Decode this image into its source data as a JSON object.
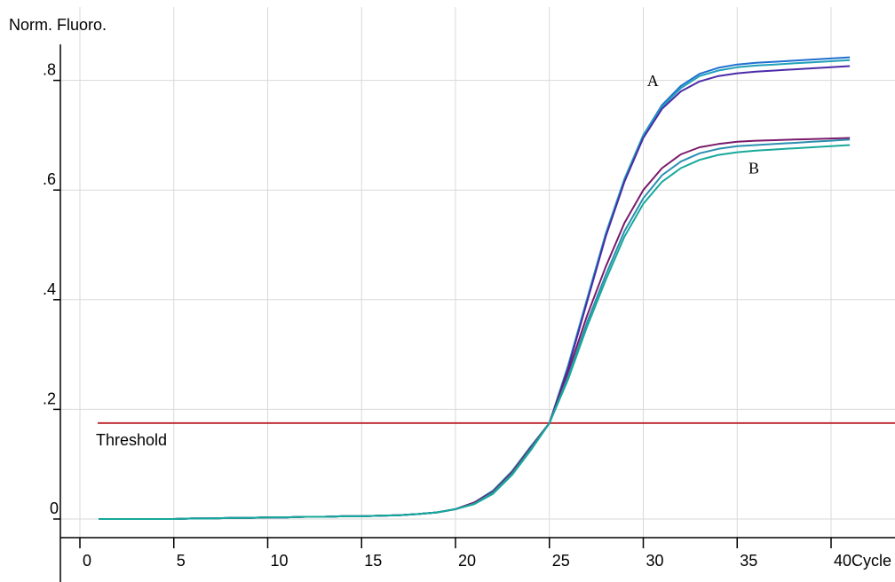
{
  "chart_data": {
    "type": "line",
    "ylabel": "Norm. Fluoro.",
    "xlabel": "Cycle",
    "xlim": [
      0,
      41
    ],
    "ylim": [
      -0.03,
      0.87
    ],
    "x_ticks": [
      0,
      5,
      10,
      15,
      20,
      25,
      30,
      35,
      40
    ],
    "x_tick_labels": [
      "0",
      "5",
      "10",
      "15",
      "20",
      "25",
      "30",
      "35",
      "40"
    ],
    "y_ticks": [
      0,
      0.2,
      0.4,
      0.6,
      0.8
    ],
    "y_tick_labels": [
      "0",
      ".2",
      ".4",
      ".6",
      ".8"
    ],
    "grid": true,
    "threshold": {
      "label": "Threshold",
      "value": 0.175,
      "color": "#c0303a"
    },
    "annotations": [
      {
        "text": "A",
        "x": 30.2,
        "y": 0.79
      },
      {
        "text": "B",
        "x": 35.6,
        "y": 0.63
      }
    ],
    "x": [
      1,
      2,
      3,
      4,
      5,
      6,
      7,
      8,
      9,
      10,
      11,
      12,
      13,
      14,
      15,
      16,
      17,
      18,
      19,
      20,
      21,
      22,
      23,
      24,
      25,
      26,
      27,
      28,
      29,
      30,
      31,
      32,
      33,
      34,
      35,
      36,
      37,
      38,
      39,
      40,
      41
    ],
    "series": [
      {
        "color": "#1f6fd1",
        "values": [
          0,
          0,
          0,
          0,
          0,
          0.001,
          0.001,
          0.002,
          0.002,
          0.003,
          0.003,
          0.004,
          0.004,
          0.005,
          0.005,
          0.006,
          0.007,
          0.009,
          0.012,
          0.018,
          0.03,
          0.05,
          0.085,
          0.13,
          0.175,
          0.28,
          0.4,
          0.52,
          0.62,
          0.7,
          0.755,
          0.79,
          0.812,
          0.823,
          0.829,
          0.832,
          0.834,
          0.836,
          0.838,
          0.84,
          0.842
        ]
      },
      {
        "color": "#20a0b8",
        "values": [
          0,
          0,
          0,
          0,
          0,
          0.001,
          0.001,
          0.002,
          0.002,
          0.003,
          0.003,
          0.004,
          0.004,
          0.005,
          0.005,
          0.006,
          0.007,
          0.009,
          0.012,
          0.018,
          0.03,
          0.052,
          0.087,
          0.132,
          0.175,
          0.28,
          0.4,
          0.52,
          0.62,
          0.7,
          0.752,
          0.786,
          0.808,
          0.818,
          0.824,
          0.827,
          0.829,
          0.831,
          0.833,
          0.835,
          0.837
        ]
      },
      {
        "color": "#4b2aa8",
        "values": [
          0,
          0,
          0,
          0,
          0,
          0.001,
          0.001,
          0.002,
          0.002,
          0.003,
          0.003,
          0.004,
          0.004,
          0.005,
          0.005,
          0.006,
          0.007,
          0.009,
          0.012,
          0.018,
          0.03,
          0.05,
          0.083,
          0.128,
          0.175,
          0.275,
          0.395,
          0.515,
          0.615,
          0.695,
          0.748,
          0.78,
          0.798,
          0.808,
          0.813,
          0.816,
          0.818,
          0.82,
          0.822,
          0.824,
          0.826
        ]
      },
      {
        "color": "#7a1a6a",
        "values": [
          0,
          0,
          0,
          0,
          0,
          0.001,
          0.001,
          0.002,
          0.002,
          0.003,
          0.003,
          0.004,
          0.004,
          0.005,
          0.005,
          0.006,
          0.007,
          0.009,
          0.012,
          0.018,
          0.03,
          0.05,
          0.085,
          0.13,
          0.175,
          0.268,
          0.37,
          0.46,
          0.54,
          0.6,
          0.64,
          0.665,
          0.678,
          0.684,
          0.688,
          0.69,
          0.691,
          0.692,
          0.693,
          0.694,
          0.695
        ]
      },
      {
        "color": "#2a8fb0",
        "values": [
          0,
          0,
          0,
          0,
          0,
          0.001,
          0.001,
          0.002,
          0.002,
          0.003,
          0.003,
          0.004,
          0.004,
          0.005,
          0.005,
          0.006,
          0.007,
          0.009,
          0.012,
          0.018,
          0.028,
          0.048,
          0.082,
          0.127,
          0.175,
          0.26,
          0.358,
          0.445,
          0.525,
          0.585,
          0.627,
          0.652,
          0.667,
          0.675,
          0.68,
          0.682,
          0.684,
          0.686,
          0.688,
          0.69,
          0.692
        ]
      },
      {
        "color": "#17a89a",
        "values": [
          0,
          0,
          0,
          0,
          0,
          0.001,
          0.001,
          0.002,
          0.002,
          0.003,
          0.003,
          0.004,
          0.004,
          0.005,
          0.005,
          0.006,
          0.007,
          0.009,
          0.012,
          0.018,
          0.027,
          0.046,
          0.08,
          0.125,
          0.175,
          0.255,
          0.35,
          0.436,
          0.515,
          0.575,
          0.615,
          0.64,
          0.655,
          0.664,
          0.669,
          0.672,
          0.674,
          0.676,
          0.678,
          0.68,
          0.682
        ]
      }
    ]
  }
}
